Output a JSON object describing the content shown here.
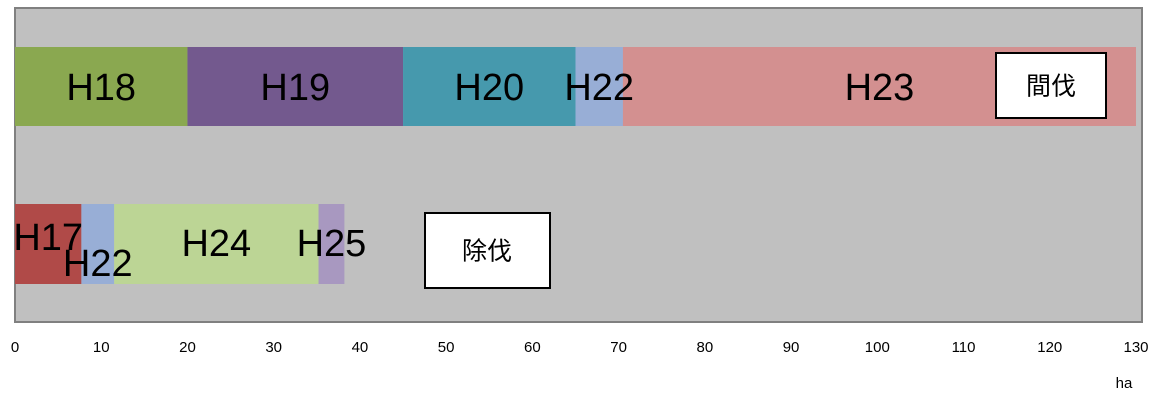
{
  "chart_data": {
    "type": "bar",
    "orientation": "horizontal",
    "stacked": true,
    "xlim": [
      0,
      130
    ],
    "x_ticks": [
      0,
      10,
      20,
      30,
      40,
      50,
      60,
      70,
      80,
      90,
      100,
      110,
      120,
      130
    ],
    "unit_label": "ha",
    "grid": false,
    "plot_background": "#c0c0c0",
    "rows": [
      {
        "label": "間伐",
        "segments": [
          {
            "name": "H18",
            "start": 0,
            "end": 20,
            "color": "#8aa850"
          },
          {
            "name": "H19",
            "start": 20,
            "end": 45,
            "color": "#73598e"
          },
          {
            "name": "H20",
            "start": 45,
            "end": 65,
            "color": "#4699ad"
          },
          {
            "name": "H22",
            "start": 65,
            "end": 70.5,
            "color": "#98aed6"
          },
          {
            "name": "H23",
            "start": 70.5,
            "end": 130,
            "color": "#d39090"
          }
        ]
      },
      {
        "label": "除伐",
        "segments": [
          {
            "name": "H17",
            "start": 0,
            "end": 7.7,
            "color": "#b04a48"
          },
          {
            "name": "H22",
            "start": 7.7,
            "end": 11.5,
            "color": "#98aed6"
          },
          {
            "name": "H24",
            "start": 11.5,
            "end": 35.2,
            "color": "#bcd595"
          },
          {
            "name": "H25",
            "start": 35.2,
            "end": 38.2,
            "color": "#a898c0"
          }
        ]
      }
    ]
  }
}
